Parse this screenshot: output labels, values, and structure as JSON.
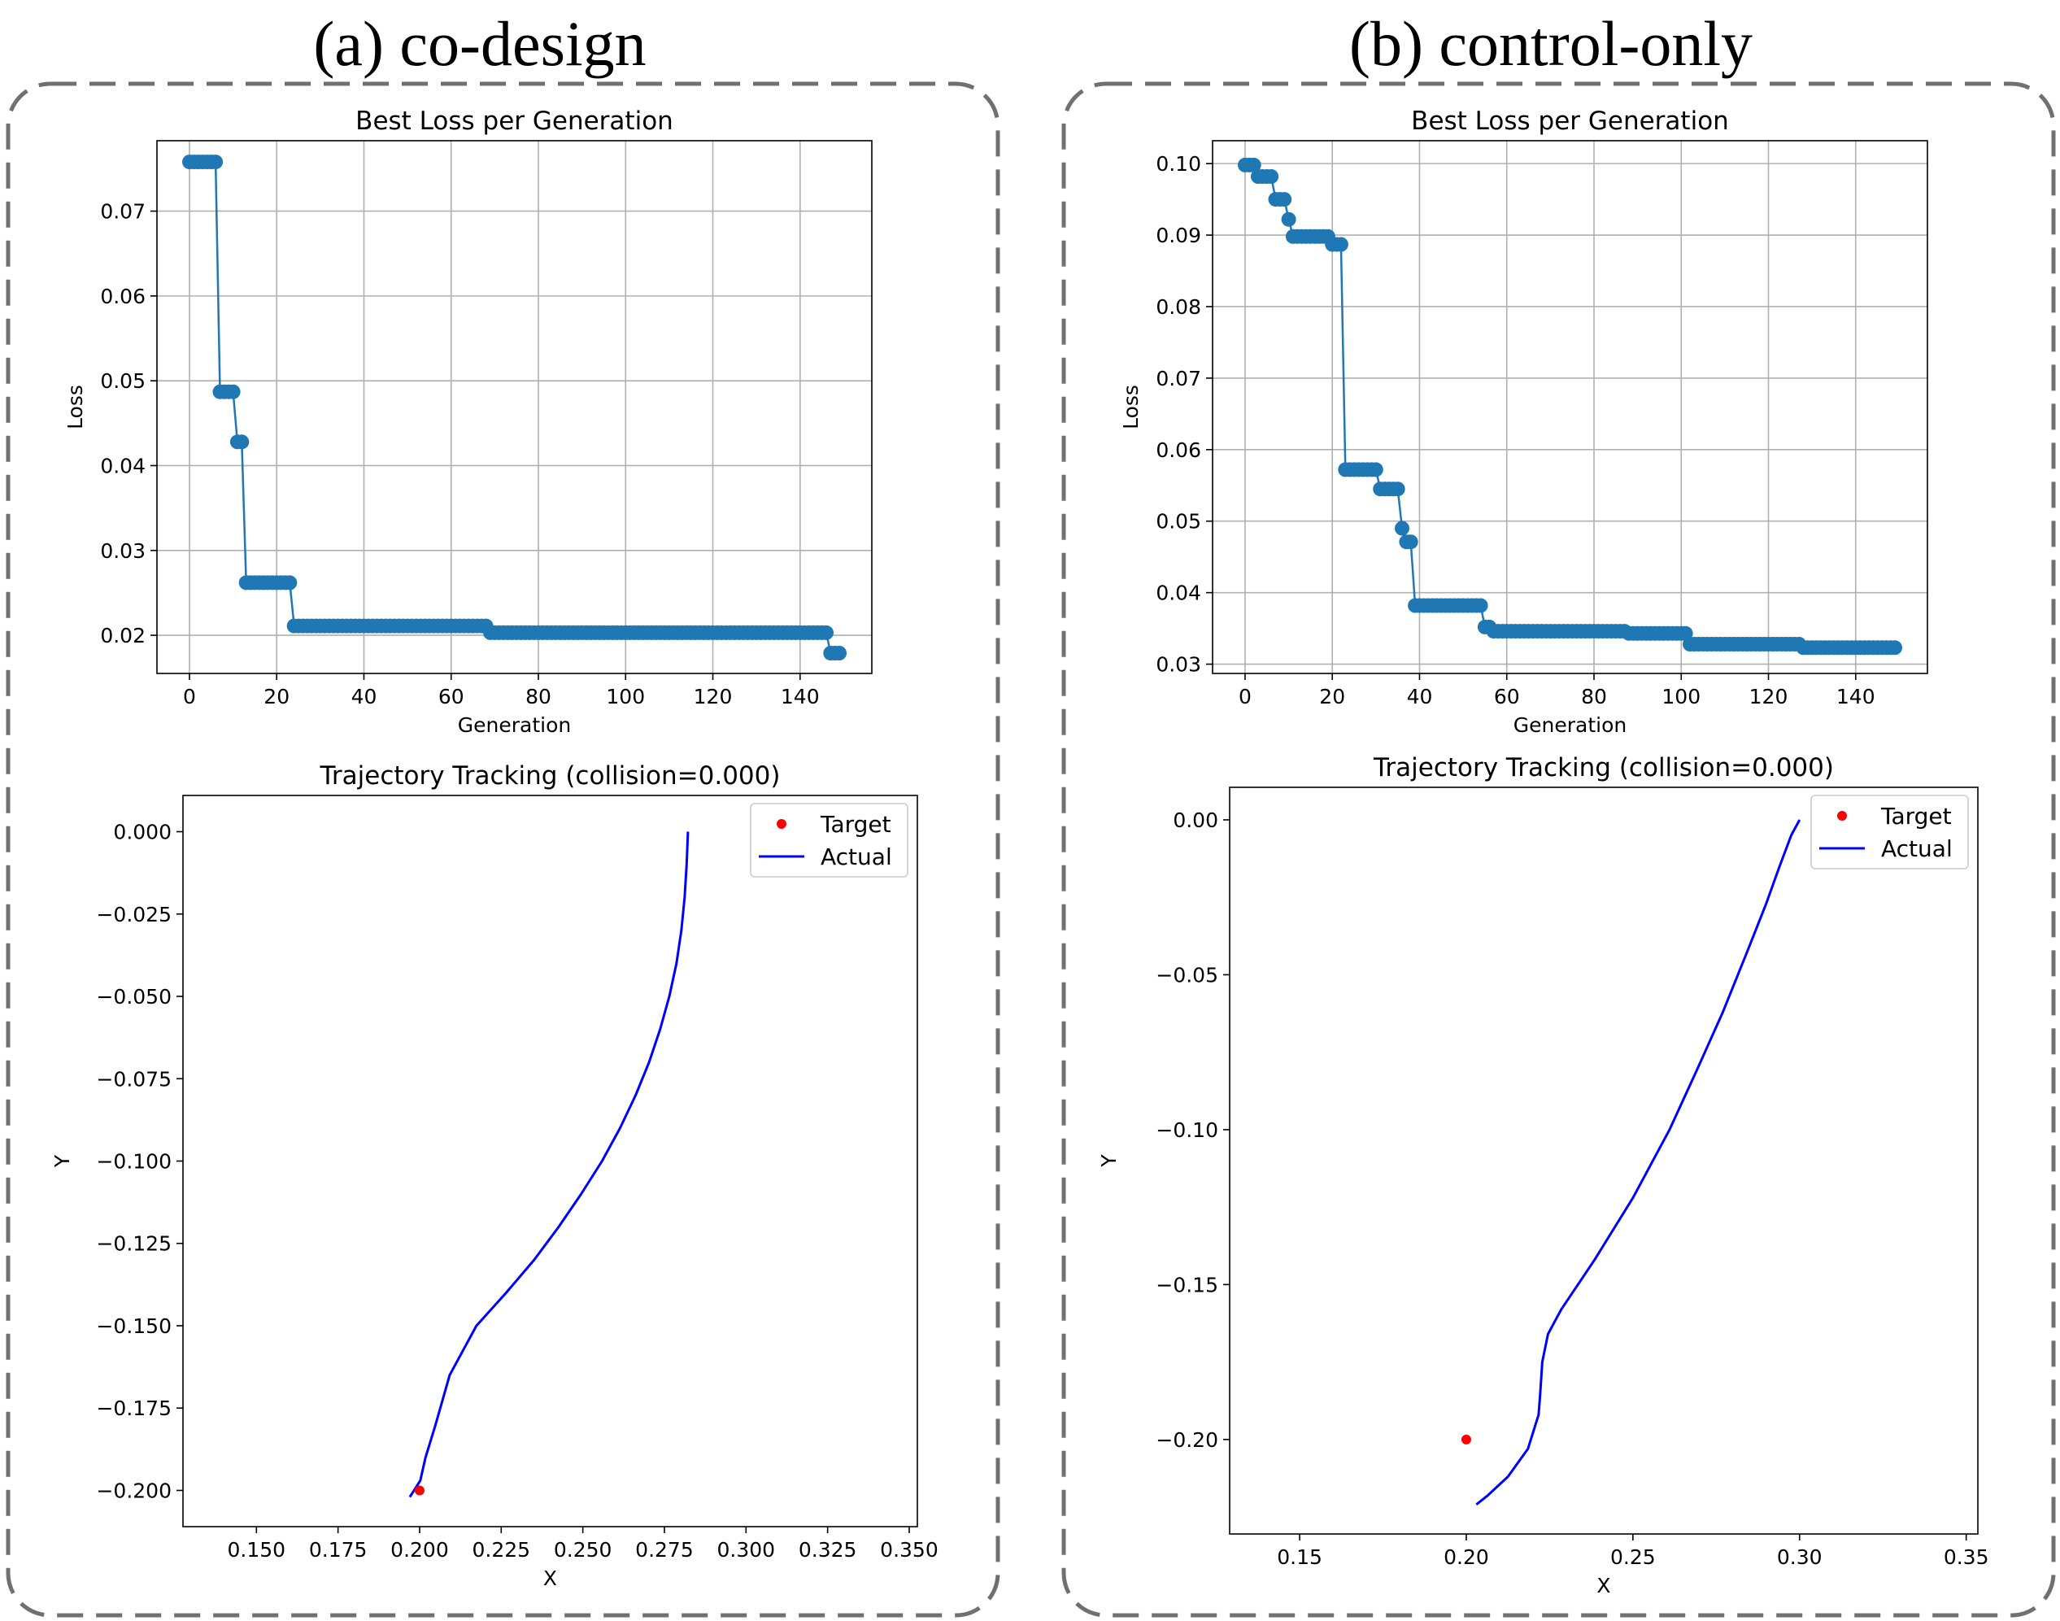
{
  "panels": [
    {
      "title": "(a) co-design"
    },
    {
      "title": "(b) control-only"
    }
  ],
  "colors": {
    "loss_line": "#1f77b4",
    "trajectory": "#0000ff",
    "target": "#ff0000",
    "grid": "#b0b0b0",
    "panel_border": "#707070"
  },
  "chart_data": [
    {
      "id": "a_loss",
      "type": "line",
      "title": "Best Loss per Generation",
      "xlabel": "Generation",
      "ylabel": "Loss",
      "xlim": [
        -7.45,
        156.45
      ],
      "ylim": [
        0.0155,
        0.0783
      ],
      "xticks": [
        0,
        20,
        40,
        60,
        80,
        100,
        120,
        140
      ],
      "yticks": [
        0.02,
        0.03,
        0.04,
        0.05,
        0.06,
        0.07
      ],
      "ytick_labels": [
        "0.02",
        "0.03",
        "0.04",
        "0.05",
        "0.06",
        "0.07"
      ],
      "grid": true,
      "marker": "o",
      "steps": [
        [
          0,
          0.0758
        ],
        [
          7,
          0.0487
        ],
        [
          11,
          0.0428
        ],
        [
          13,
          0.0262
        ],
        [
          24,
          0.0211
        ],
        [
          69,
          0.0203
        ],
        [
          147,
          0.0179
        ],
        [
          149,
          0.0179
        ]
      ]
    },
    {
      "id": "a_traj",
      "type": "line",
      "title": "Trajectory Tracking  (collision=0.000)",
      "xlabel": "X",
      "ylabel": "Y",
      "xlim": [
        0.1275,
        0.3525
      ],
      "ylim": [
        -0.211,
        0.011
      ],
      "xticks": [
        0.15,
        0.175,
        0.2,
        0.225,
        0.25,
        0.275,
        0.3,
        0.325,
        0.35
      ],
      "xtick_labels": [
        "0.150",
        "0.175",
        "0.200",
        "0.225",
        "0.250",
        "0.275",
        "0.300",
        "0.325",
        "0.350"
      ],
      "yticks": [
        0.0,
        -0.025,
        -0.05,
        -0.075,
        -0.1,
        -0.125,
        -0.15,
        -0.175,
        -0.2
      ],
      "ytick_labels": [
        "0.000",
        "−0.025",
        "−0.050",
        "−0.075",
        "−0.100",
        "−0.125",
        "−0.150",
        "−0.175",
        "−0.200"
      ],
      "grid": false,
      "legend": {
        "position": "upper right",
        "entries": [
          "Target",
          "Actual"
        ]
      },
      "target": [
        0.2,
        -0.2
      ],
      "actual": [
        [
          0.2822,
          0.0
        ],
        [
          0.2818,
          -0.01
        ],
        [
          0.2812,
          -0.02
        ],
        [
          0.2802,
          -0.03
        ],
        [
          0.2787,
          -0.04
        ],
        [
          0.2765,
          -0.05
        ],
        [
          0.2737,
          -0.06
        ],
        [
          0.2703,
          -0.07
        ],
        [
          0.2662,
          -0.08
        ],
        [
          0.2614,
          -0.09
        ],
        [
          0.2559,
          -0.1
        ],
        [
          0.2495,
          -0.11
        ],
        [
          0.2426,
          -0.12
        ],
        [
          0.2351,
          -0.13
        ],
        [
          0.2265,
          -0.14
        ],
        [
          0.2174,
          -0.15
        ],
        [
          0.2092,
          -0.165
        ],
        [
          0.2049,
          -0.18
        ],
        [
          0.2018,
          -0.19
        ],
        [
          0.2002,
          -0.197
        ],
        [
          0.197,
          -0.202
        ]
      ]
    },
    {
      "id": "b_loss",
      "type": "line",
      "title": "Best Loss per Generation",
      "xlabel": "Generation",
      "ylabel": "Loss",
      "xlim": [
        -7.45,
        156.45
      ],
      "ylim": [
        0.0287,
        0.1032
      ],
      "xticks": [
        0,
        20,
        40,
        60,
        80,
        100,
        120,
        140
      ],
      "yticks": [
        0.03,
        0.04,
        0.05,
        0.06,
        0.07,
        0.08,
        0.09,
        0.1
      ],
      "ytick_labels": [
        "0.03",
        "0.04",
        "0.05",
        "0.06",
        "0.07",
        "0.08",
        "0.09",
        "0.10"
      ],
      "grid": true,
      "marker": "o",
      "steps": [
        [
          0,
          0.0998
        ],
        [
          3,
          0.0982
        ],
        [
          7,
          0.095
        ],
        [
          10,
          0.0922
        ],
        [
          11,
          0.0898
        ],
        [
          20,
          0.0887
        ],
        [
          23,
          0.0572
        ],
        [
          31,
          0.0545
        ],
        [
          36,
          0.049
        ],
        [
          37,
          0.0471
        ],
        [
          39,
          0.0382
        ],
        [
          55,
          0.0352
        ],
        [
          57,
          0.0346
        ],
        [
          88,
          0.0343
        ],
        [
          102,
          0.0328
        ],
        [
          128,
          0.0323
        ],
        [
          149,
          0.0323
        ]
      ]
    },
    {
      "id": "b_traj",
      "type": "line",
      "title": "Trajectory Tracking  (collision=0.000)",
      "xlabel": "X",
      "ylabel": "Y",
      "xlim": [
        0.129,
        0.3535
      ],
      "ylim": [
        -0.2305,
        0.0105
      ],
      "xticks": [
        0.15,
        0.2,
        0.25,
        0.3,
        0.35
      ],
      "xtick_labels": [
        "0.15",
        "0.20",
        "0.25",
        "0.30",
        "0.35"
      ],
      "yticks": [
        0.0,
        -0.05,
        -0.1,
        -0.15,
        -0.2
      ],
      "ytick_labels": [
        "0.00",
        "−0.05",
        "−0.10",
        "−0.15",
        "−0.20"
      ],
      "grid": false,
      "legend": {
        "position": "upper right",
        "entries": [
          "Target",
          "Actual"
        ]
      },
      "target": [
        0.2,
        -0.2
      ],
      "actual": [
        [
          0.3,
          0.0
        ],
        [
          0.2975,
          -0.005
        ],
        [
          0.294,
          -0.015
        ],
        [
          0.29,
          -0.027
        ],
        [
          0.2845,
          -0.042
        ],
        [
          0.277,
          -0.062
        ],
        [
          0.2695,
          -0.08
        ],
        [
          0.261,
          -0.1
        ],
        [
          0.25,
          -0.122
        ],
        [
          0.2385,
          -0.142
        ],
        [
          0.2285,
          -0.158
        ],
        [
          0.2245,
          -0.166
        ],
        [
          0.2228,
          -0.175
        ],
        [
          0.2222,
          -0.185
        ],
        [
          0.2217,
          -0.192
        ],
        [
          0.2185,
          -0.203
        ],
        [
          0.2125,
          -0.212
        ],
        [
          0.2065,
          -0.218
        ],
        [
          0.203,
          -0.221
        ]
      ]
    }
  ]
}
